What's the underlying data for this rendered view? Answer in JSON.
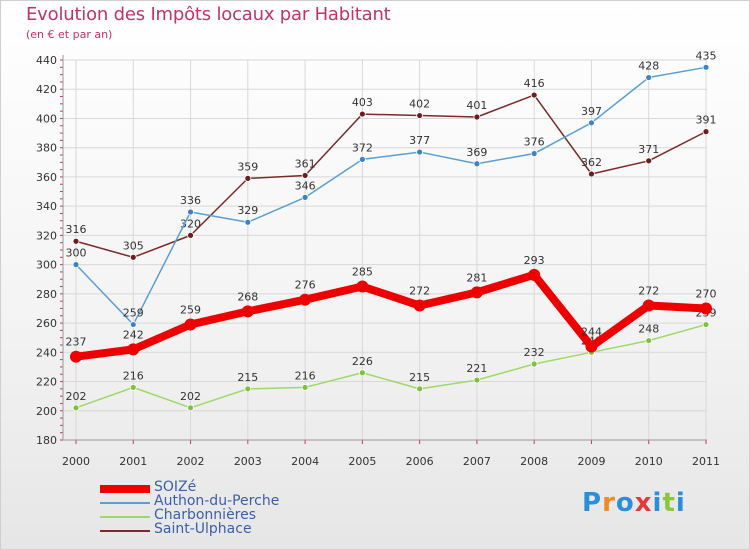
{
  "title": "Evolution des Impôts locaux par Habitant",
  "subtitle": "(en € et par an)",
  "brand": {
    "letters": [
      "P",
      "r",
      "o",
      "x",
      "i",
      "t",
      "i"
    ],
    "colors": [
      "#2a8fd6",
      "#f08a24",
      "#2a8fd6",
      "#e23b3b",
      "#2a8fd6",
      "#8cc63f",
      "#2a8fd6"
    ]
  },
  "chart_data": {
    "type": "line",
    "title": "Evolution des Impôts locaux par Habitant",
    "subtitle": "(en € et par an)",
    "xlabel": "",
    "ylabel": "",
    "x": [
      "2000",
      "2001",
      "2002",
      "2003",
      "2004",
      "2005",
      "2006",
      "2007",
      "2008",
      "2009",
      "2010",
      "2011"
    ],
    "ylim": [
      180,
      440
    ],
    "yticks": [
      180,
      200,
      220,
      240,
      260,
      280,
      300,
      320,
      340,
      360,
      380,
      400,
      420,
      440
    ],
    "grid": true,
    "legend_position": "bottom-left",
    "series": [
      {
        "name": "Saint-Ulphace",
        "color": "#7a2a2a",
        "values": [
          316,
          305,
          320,
          359,
          361,
          403,
          402,
          401,
          416,
          362,
          371,
          391
        ]
      },
      {
        "name": "Authon-du-Perche",
        "color": "#5a9fd4",
        "values": [
          300,
          259,
          336,
          329,
          346,
          372,
          377,
          369,
          376,
          397,
          428,
          435
        ]
      },
      {
        "name": "Charbonnières",
        "color": "#9ed868",
        "values": [
          202,
          216,
          202,
          215,
          216,
          226,
          215,
          221,
          232,
          240,
          248,
          259
        ]
      },
      {
        "name": "SOIZé",
        "color": "#ee0000",
        "values": [
          237,
          242,
          259,
          268,
          276,
          285,
          272,
          281,
          293,
          244,
          272,
          270
        ]
      }
    ],
    "legend_order": [
      "SOIZé",
      "Authon-du-Perche",
      "Charbonnières",
      "Saint-Ulphace"
    ]
  }
}
